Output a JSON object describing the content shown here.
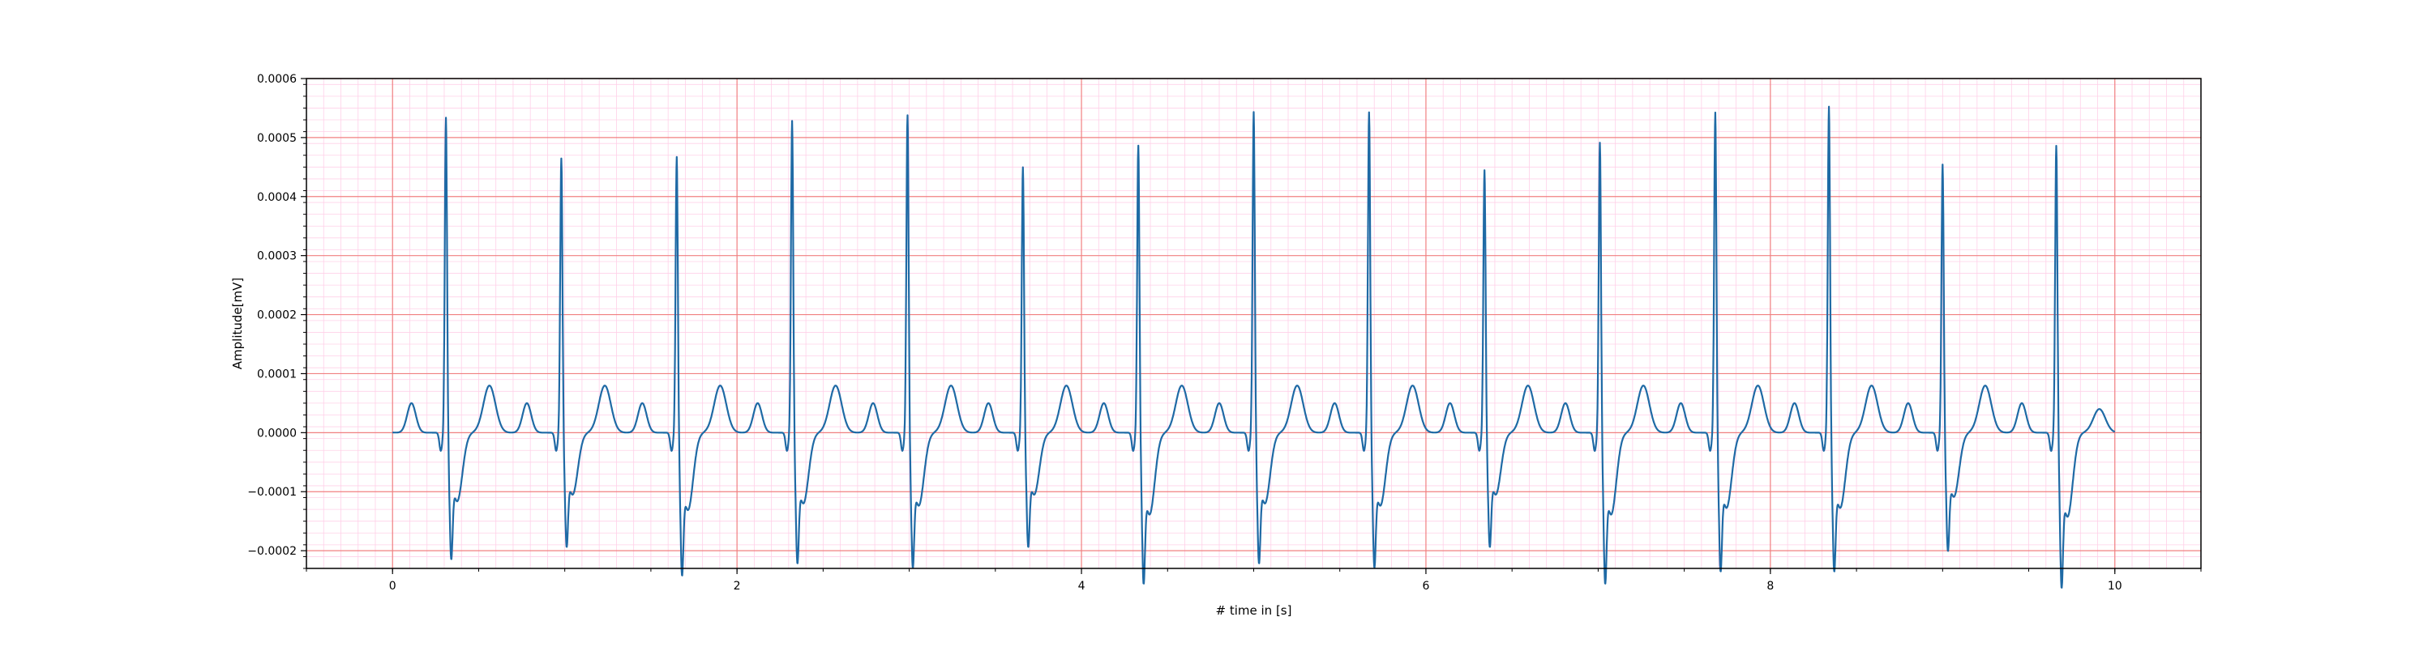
{
  "chart_data": {
    "type": "line",
    "title": "",
    "xlabel": "# time in [s]",
    "ylabel": "Amplitude[mV]",
    "xlim": [
      -0.5,
      10.5
    ],
    "ylim": [
      -0.00023,
      0.0006
    ],
    "xticks": [
      0,
      2,
      4,
      6,
      8,
      10
    ],
    "xtick_labels": [
      "0",
      "2",
      "4",
      "6",
      "8",
      "10"
    ],
    "yticks": [
      -0.0002,
      -0.0001,
      0.0,
      0.0001,
      0.0002,
      0.0003,
      0.0004,
      0.0005,
      0.0006
    ],
    "ytick_labels": [
      "−0.0002",
      "−0.0001",
      "0.0000",
      "0.0001",
      "0.0002",
      "0.0003",
      "0.0004",
      "0.0005",
      "0.0006"
    ],
    "grid": {
      "major": true,
      "minor": true,
      "major_color": "#f08080",
      "minor_color": "#ffd0e8"
    },
    "legend": "none",
    "line_color": "#1f6aa5",
    "beats": [
      {
        "r_time": 0.31,
        "r_amp": 0.000545,
        "s_amp": -0.000155
      },
      {
        "r_time": 0.98,
        "r_amp": 0.000475,
        "s_amp": -0.00014
      },
      {
        "r_time": 1.65,
        "r_amp": 0.00048,
        "s_amp": -0.000175
      },
      {
        "r_time": 2.32,
        "r_amp": 0.00054,
        "s_amp": -0.00016
      },
      {
        "r_time": 2.99,
        "r_amp": 0.00055,
        "s_amp": -0.000165
      },
      {
        "r_time": 3.66,
        "r_amp": 0.00046,
        "s_amp": -0.00014
      },
      {
        "r_time": 4.33,
        "r_amp": 0.0005,
        "s_amp": -0.000185
      },
      {
        "r_time": 5.0,
        "r_amp": 0.000555,
        "s_amp": -0.00016
      },
      {
        "r_time": 5.67,
        "r_amp": 0.000555,
        "s_amp": -0.000165
      },
      {
        "r_time": 6.34,
        "r_amp": 0.000455,
        "s_amp": -0.00014
      },
      {
        "r_time": 7.01,
        "r_amp": 0.000505,
        "s_amp": -0.000185
      },
      {
        "r_time": 7.68,
        "r_amp": 0.000555,
        "s_amp": -0.00017
      },
      {
        "r_time": 8.34,
        "r_amp": 0.000565,
        "s_amp": -0.00017
      },
      {
        "r_time": 9.0,
        "r_amp": 0.000465,
        "s_amp": -0.000145
      },
      {
        "r_time": 9.66,
        "r_amp": 0.0005,
        "s_amp": -0.00019
      }
    ],
    "t_wave_amp": 4e-05,
    "p_wave_amp": 5e-05,
    "x_range": [
      0,
      10
    ]
  }
}
